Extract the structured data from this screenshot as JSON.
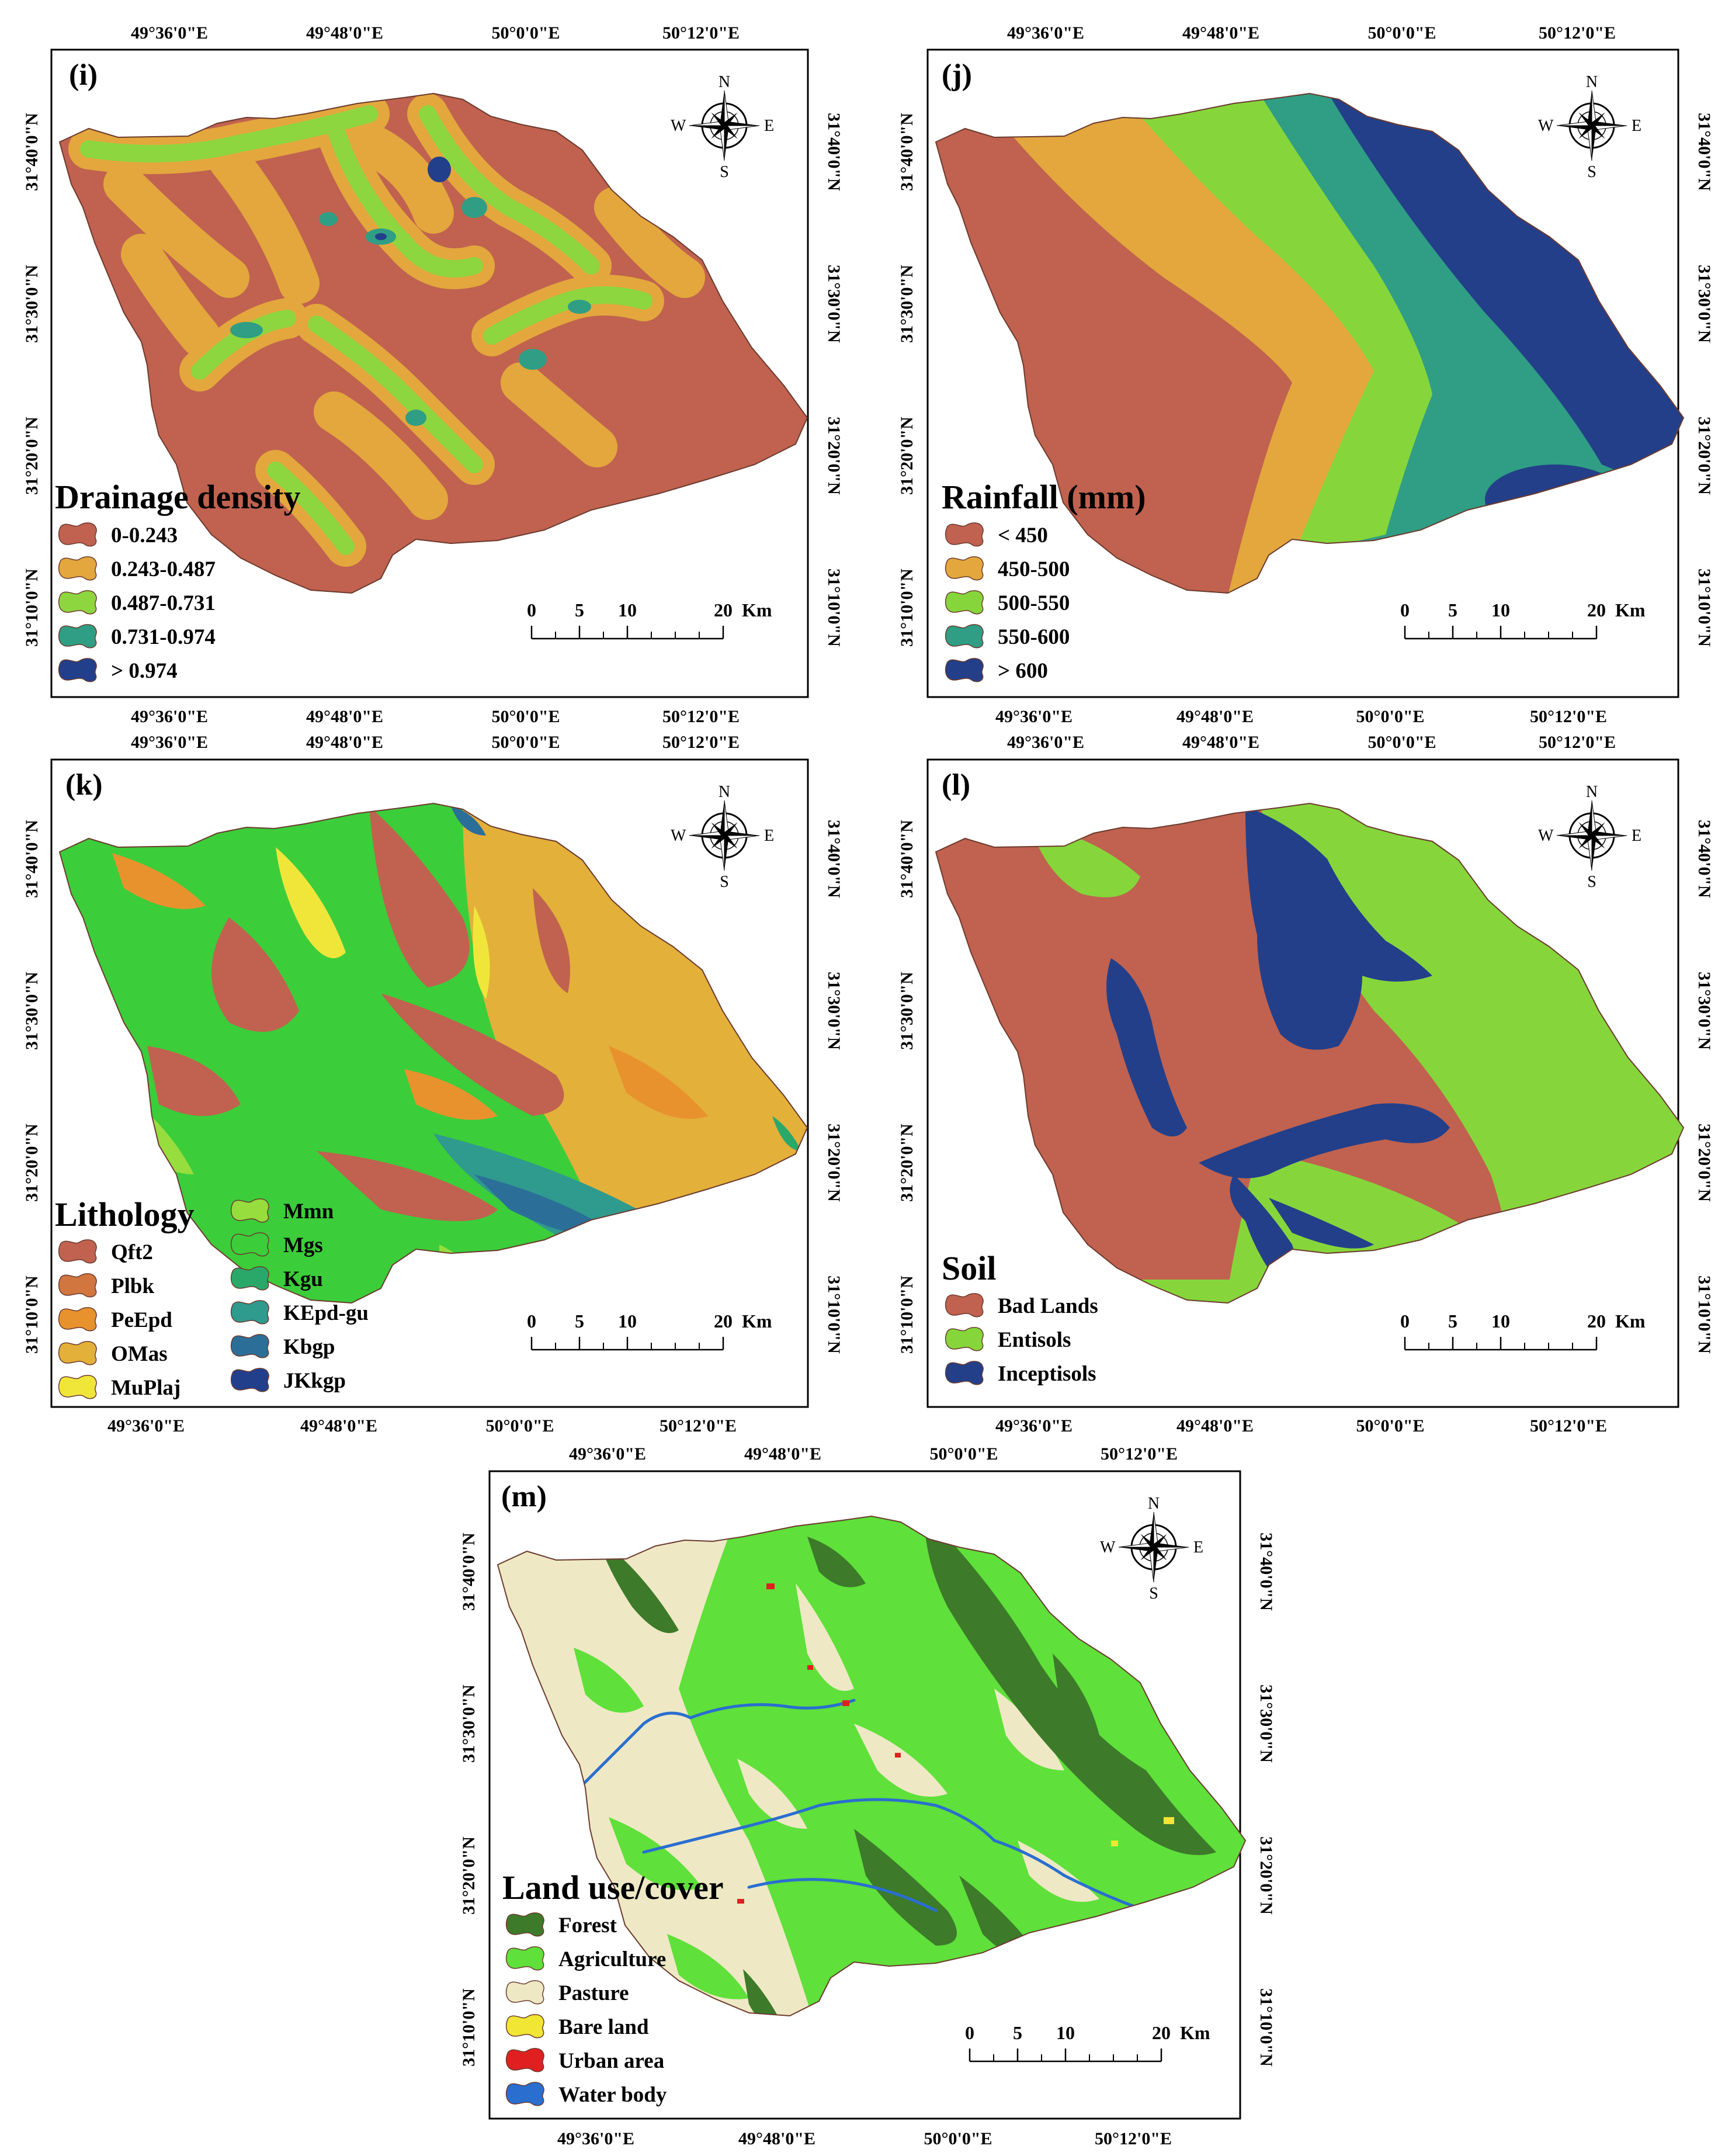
{
  "coordinates": {
    "lon_top": [
      "49°36'0\"E",
      "49°48'0\"E",
      "50°0'0\"E",
      "50°12'0\"E"
    ],
    "lon_bottom": [
      "49°36'0\"E",
      "49°48'0\"E",
      "50°0'0\"E",
      "50°12'0\"E"
    ],
    "lat": [
      "31°40'0\"N",
      "31°30'0\"N",
      "31°20'0\"N",
      "31°10'0\"N"
    ]
  },
  "north_arrow": {
    "n": "N",
    "s": "S",
    "e": "E",
    "w": "W"
  },
  "scale_bar": {
    "labels": [
      "0",
      "5",
      "10",
      "20"
    ],
    "unit": "Km"
  },
  "panels": [
    {
      "id": "i",
      "label": "(i)",
      "legend_title": "Drainage density",
      "classes": [
        {
          "name": "0-0.243",
          "color": "#c0624f"
        },
        {
          "name": "0.243-0.487",
          "color": "#e3a73d"
        },
        {
          "name": "0.487-0.731",
          "color": "#8ed63f"
        },
        {
          "name": "0.731-0.974",
          "color": "#2f9e84"
        },
        {
          "name": "> 0.974",
          "color": "#223f8c"
        }
      ]
    },
    {
      "id": "j",
      "label": "(j)",
      "legend_title": "Rainfall (mm)",
      "classes": [
        {
          "name": "< 450",
          "color": "#c0624f"
        },
        {
          "name": "450-500",
          "color": "#e3a73d"
        },
        {
          "name": "500-550",
          "color": "#86d63b"
        },
        {
          "name": "550-600",
          "color": "#2f9e84"
        },
        {
          "name": "> 600",
          "color": "#233f89"
        }
      ]
    },
    {
      "id": "k",
      "label": "(k)",
      "legend_title": "Lithology",
      "classes": [
        {
          "name": "Qft2",
          "color": "#c0624f"
        },
        {
          "name": "Plbk",
          "color": "#d2763f"
        },
        {
          "name": "PeEpd",
          "color": "#e8922e"
        },
        {
          "name": "OMas",
          "color": "#e3b03a"
        },
        {
          "name": "MuPlaj",
          "color": "#f0e63a"
        },
        {
          "name": "Mmn",
          "color": "#97dd3e"
        },
        {
          "name": "Mgs",
          "color": "#3ccd3a"
        },
        {
          "name": "Kgu",
          "color": "#2aa86a"
        },
        {
          "name": "KEpd-gu",
          "color": "#2f9a8e"
        },
        {
          "name": "Kbgp",
          "color": "#2b6f98"
        },
        {
          "name": "JKkgp",
          "color": "#223f8c"
        }
      ]
    },
    {
      "id": "l",
      "label": "(l)",
      "legend_title": "Soil",
      "classes": [
        {
          "name": "Bad Lands",
          "color": "#c0624f"
        },
        {
          "name": "Entisols",
          "color": "#86d63b"
        },
        {
          "name": "Inceptisols",
          "color": "#233f89"
        }
      ]
    },
    {
      "id": "m",
      "label": "(m)",
      "legend_title": "Land use/cover",
      "classes": [
        {
          "name": "Forest",
          "color": "#3d7a2a"
        },
        {
          "name": "Agriculture",
          "color": "#5fe03a"
        },
        {
          "name": "Pasture",
          "color": "#eee9c4"
        },
        {
          "name": "Bare land",
          "color": "#f0e633"
        },
        {
          "name": "Urban area",
          "color": "#e02020"
        },
        {
          "name": "Water body",
          "color": "#2a6ed0"
        }
      ]
    }
  ]
}
